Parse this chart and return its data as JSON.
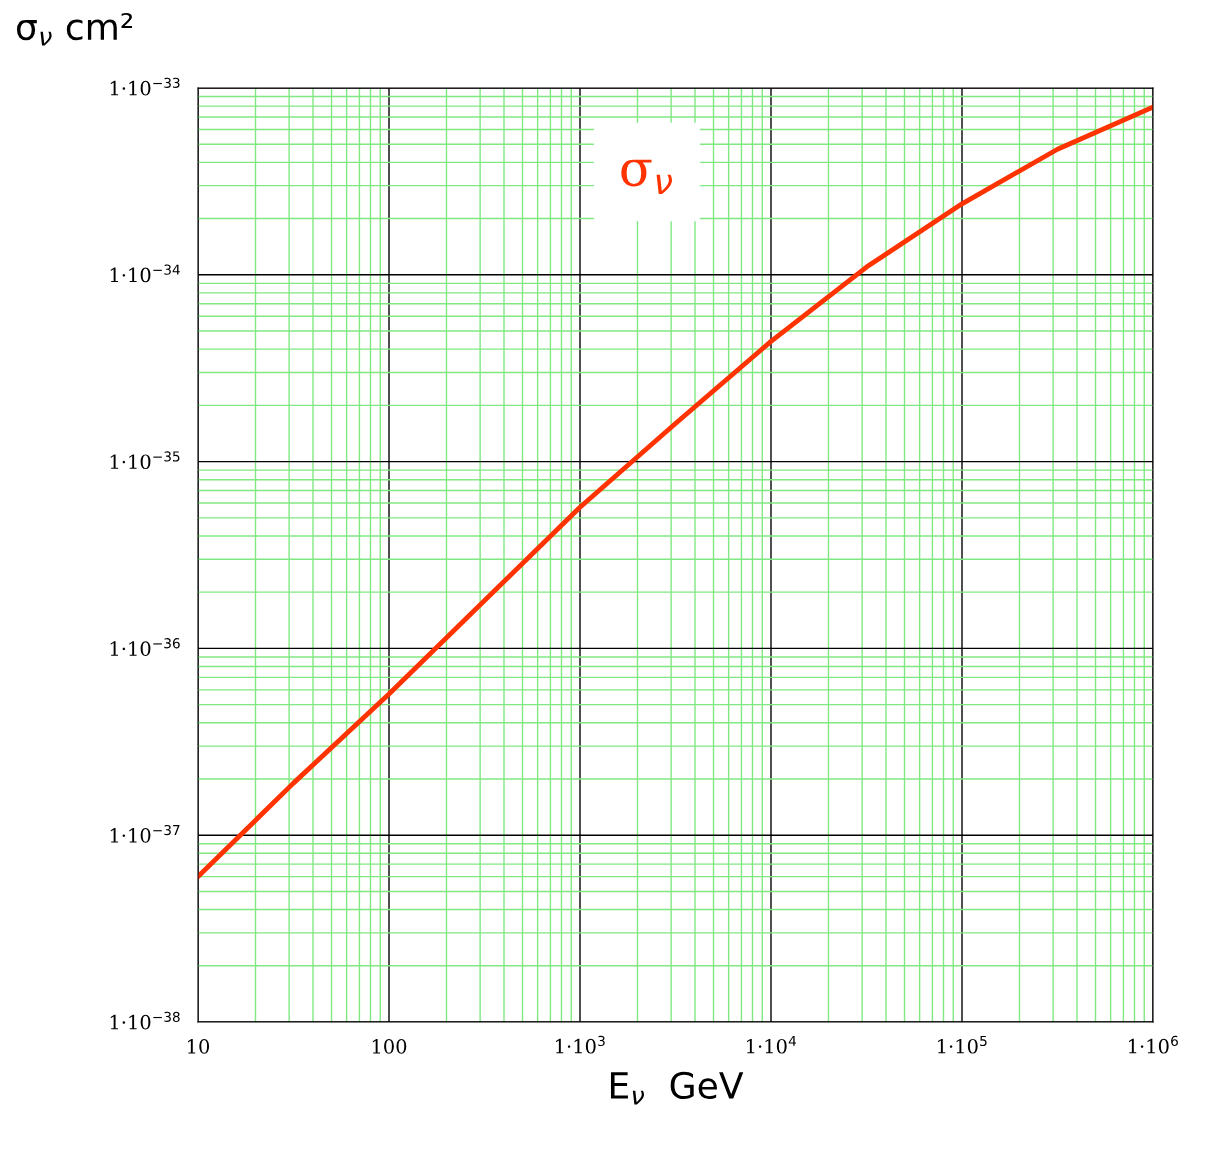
{
  "chart_data": {
    "type": "line",
    "xlabel": "E$_{ν}$  GeV",
    "ylabel": "σ$_{ν}$ cm²",
    "log": "xy",
    "grid": true,
    "x": [
      10,
      31.6,
      100,
      1000,
      3162,
      10000,
      31623,
      100000,
      316228,
      1000000
    ],
    "series": [
      {
        "name": "σ$_{ν}$",
        "color": "#ff3300",
        "values": [
          6e-38,
          1.9e-37,
          5.7e-37,
          5.7e-36,
          1.6e-35,
          4.4e-35,
          1.1e-34,
          2.4e-34,
          4.7e-34,
          7.9e-34
        ]
      }
    ],
    "xlim": [
      10,
      1000000
    ],
    "ylim": [
      1e-38,
      1e-33
    ],
    "xticks": [
      10,
      100,
      {
        "value": 1000,
        "label": "1·10$^{3}$"
      },
      {
        "value": 10000,
        "label": "1·10$^{4}$"
      },
      {
        "value": 100000,
        "label": "1·10$^{5}$"
      },
      {
        "value": 1000000,
        "label": "1·10$^{6}$"
      },
      {
        "value": 20,
        "label": null
      },
      {
        "value": 30,
        "label": null
      },
      {
        "value": 40,
        "label": null
      },
      {
        "value": 50,
        "label": null
      },
      {
        "value": 60,
        "label": null
      },
      {
        "value": 70,
        "label": null
      },
      {
        "value": 80,
        "label": null
      },
      {
        "value": 90,
        "label": null
      },
      {
        "value": 200,
        "label": null
      },
      {
        "value": 300,
        "label": null
      },
      {
        "value": 400,
        "label": null
      },
      {
        "value": 500,
        "label": null
      },
      {
        "value": 600,
        "label": null
      },
      {
        "value": 700,
        "label": null
      },
      {
        "value": 800,
        "label": null
      },
      {
        "value": 900,
        "label": null
      },
      {
        "value": 2000,
        "label": null
      },
      {
        "value": 3000,
        "label": null
      },
      {
        "value": 4000,
        "label": null
      },
      {
        "value": 5000,
        "label": null
      },
      {
        "value": 6000,
        "label": null
      },
      {
        "value": 7000,
        "label": null
      },
      {
        "value": 8000,
        "label": null
      },
      {
        "value": 9000,
        "label": null
      },
      {
        "value": 20000,
        "label": null
      },
      {
        "value": 30000,
        "label": null
      },
      {
        "value": 40000,
        "label": null
      },
      {
        "value": 50000,
        "label": null
      },
      {
        "value": 60000,
        "label": null
      },
      {
        "value": 70000,
        "label": null
      },
      {
        "value": 80000,
        "label": null
      },
      {
        "value": 90000,
        "label": null
      },
      {
        "value": 200000,
        "label": null
      },
      {
        "value": 300000,
        "label": null
      },
      {
        "value": 400000,
        "label": null
      },
      {
        "value": 500000,
        "label": null
      },
      {
        "value": 600000,
        "label": null
      },
      {
        "value": 700000,
        "label": null
      },
      {
        "value": 800000,
        "label": null
      },
      {
        "value": 900000,
        "label": null
      }
    ],
    "yticks": [
      {
        "value": 1e-38,
        "label": "1·10$^{−38}$"
      },
      {
        "value": 1e-37,
        "label": "1·10$^{−37}$"
      },
      {
        "value": 1e-36,
        "label": "1·10$^{−36}$"
      },
      {
        "value": 1e-35,
        "label": "1·10$^{−35}$"
      },
      {
        "value": 1e-34,
        "label": "1·10$^{−34}$"
      },
      {
        "value": 1e-33,
        "label": "1·10$^{−33}$"
      },
      {
        "value": 2e-38,
        "label": null
      },
      {
        "value": 3e-38,
        "label": null
      },
      {
        "value": 4e-38,
        "label": null
      },
      {
        "value": 5e-38,
        "label": null
      },
      {
        "value": 6e-38,
        "label": null
      },
      {
        "value": 7e-38,
        "label": null
      },
      {
        "value": 8e-38,
        "label": null
      },
      {
        "value": 9e-38,
        "label": null
      },
      {
        "value": 2e-37,
        "label": null
      },
      {
        "value": 3e-37,
        "label": null
      },
      {
        "value": 4e-37,
        "label": null
      },
      {
        "value": 5e-37,
        "label": null
      },
      {
        "value": 6e-37,
        "label": null
      },
      {
        "value": 7e-37,
        "label": null
      },
      {
        "value": 8e-37,
        "label": null
      },
      {
        "value": 9e-37,
        "label": null
      },
      {
        "value": 2e-36,
        "label": null
      },
      {
        "value": 3e-36,
        "label": null
      },
      {
        "value": 4e-36,
        "label": null
      },
      {
        "value": 5e-36,
        "label": null
      },
      {
        "value": 6e-36,
        "label": null
      },
      {
        "value": 7e-36,
        "label": null
      },
      {
        "value": 8e-36,
        "label": null
      },
      {
        "value": 9e-36,
        "label": null
      },
      {
        "value": 2e-35,
        "label": null
      },
      {
        "value": 3e-35,
        "label": null
      },
      {
        "value": 4e-35,
        "label": null
      },
      {
        "value": 5e-35,
        "label": null
      },
      {
        "value": 6e-35,
        "label": null
      },
      {
        "value": 7e-35,
        "label": null
      },
      {
        "value": 8e-35,
        "label": null
      },
      {
        "value": 9e-35,
        "label": null
      },
      {
        "value": 2e-34,
        "label": null
      },
      {
        "value": 3e-34,
        "label": null
      },
      {
        "value": 4e-34,
        "label": null
      },
      {
        "value": 5e-34,
        "label": null
      },
      {
        "value": 6e-34,
        "label": null
      },
      {
        "value": 7e-34,
        "label": null
      },
      {
        "value": 8e-34,
        "label": null
      },
      {
        "value": 9e-34,
        "label": null
      }
    ]
  }
}
